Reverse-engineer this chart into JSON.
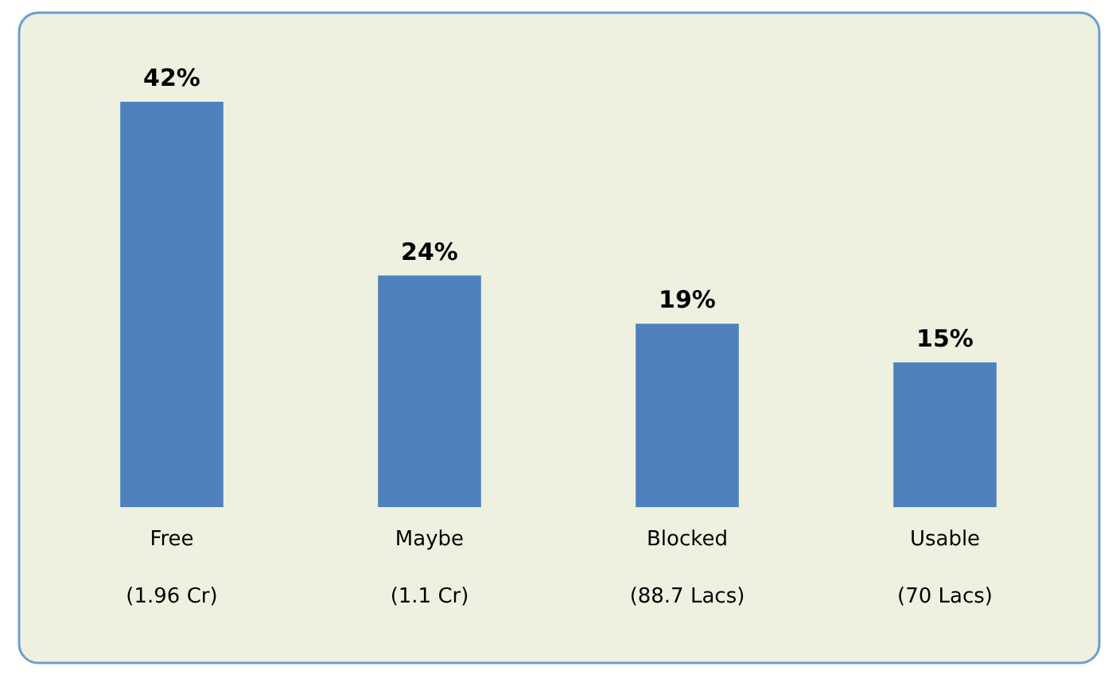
{
  "chart_data": {
    "type": "bar",
    "categories": [
      "Free\n(1.96 Cr)",
      "Maybe\n(1.1 Cr)",
      "Blocked\n(88.7 Lacs)",
      "Usable\n(70 Lacs)"
    ],
    "values": [
      42,
      24,
      19,
      15
    ],
    "value_labels": [
      "42%",
      "24%",
      "19%",
      "15%"
    ],
    "color": "#4f81bd"
  }
}
